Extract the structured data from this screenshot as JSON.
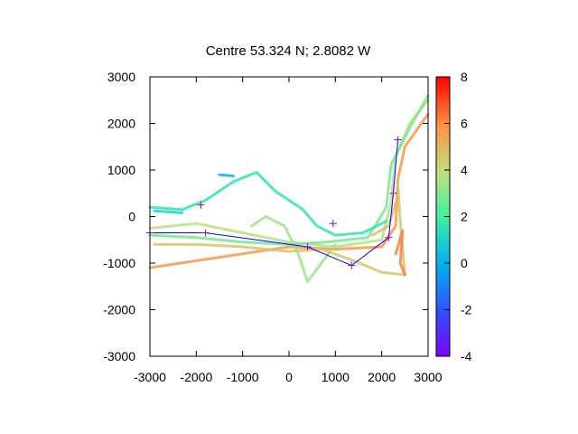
{
  "chart_data": {
    "type": "scatter",
    "title": "Centre 53.324 N; 2.8082  W",
    "xlabel": "",
    "ylabel": "",
    "xlim": [
      -3000,
      3000
    ],
    "ylim": [
      -3000,
      3000
    ],
    "xticks": [
      -3000,
      -2000,
      -1000,
      0,
      1000,
      2000,
      3000
    ],
    "yticks": [
      -3000,
      -2000,
      -1000,
      0,
      1000,
      2000,
      3000
    ],
    "xtick_labels": [
      "-3000",
      "-2000",
      "-1000",
      "0",
      "1000",
      "2000",
      "3000"
    ],
    "ytick_labels": [
      "-3000",
      "-2000",
      "-1000",
      "0",
      "1000",
      "2000",
      "3000"
    ],
    "colorbar": {
      "range": [
        -4,
        8
      ],
      "ticks": [
        -4,
        -2,
        0,
        2,
        4,
        6,
        8
      ],
      "tick_labels": [
        "-4",
        "-2",
        "0",
        "2",
        "4",
        "6",
        "8"
      ],
      "colormap": "rainbow"
    },
    "tracks": [
      {
        "values": [
          [
            -3000,
            -1100
          ],
          [
            -2000,
            -950
          ],
          [
            -1000,
            -800
          ],
          [
            0,
            -650
          ],
          [
            1000,
            -700
          ],
          [
            2000,
            -650
          ],
          [
            2300,
            -200
          ],
          [
            2350,
            800
          ],
          [
            2500,
            1500
          ],
          [
            3000,
            2200
          ]
        ],
        "color_value": 5.8
      },
      {
        "values": [
          [
            -3000,
            -250
          ],
          [
            -2000,
            -150
          ],
          [
            -1000,
            -350
          ],
          [
            0,
            -550
          ],
          [
            1000,
            -650
          ],
          [
            2000,
            -500
          ],
          [
            2200,
            300
          ],
          [
            2300,
            1300
          ],
          [
            2600,
            2000
          ],
          [
            3000,
            2500
          ]
        ],
        "color_value": 3.8
      },
      {
        "values": [
          [
            -3000,
            -400
          ],
          [
            -2000,
            -450
          ],
          [
            -1000,
            -550
          ],
          [
            0,
            -600
          ],
          [
            800,
            -550
          ],
          [
            1700,
            -450
          ],
          [
            2100,
            200
          ],
          [
            2200,
            1100
          ],
          [
            2600,
            1900
          ],
          [
            3000,
            2600
          ]
        ],
        "color_value": 2.8
      },
      {
        "values": [
          [
            -3000,
            200
          ],
          [
            -2300,
            150
          ],
          [
            -1800,
            350
          ],
          [
            -1200,
            750
          ],
          [
            -700,
            950
          ],
          [
            -300,
            550
          ],
          [
            300,
            150
          ],
          [
            600,
            -200
          ],
          [
            1000,
            -400
          ],
          [
            1600,
            -350
          ],
          [
            2100,
            -100
          ]
        ],
        "color_value": 1.6
      },
      {
        "values": [
          [
            -1500,
            900
          ],
          [
            -1200,
            870
          ]
        ],
        "color_value": 0.0
      },
      {
        "values": [
          [
            -2900,
            120
          ],
          [
            -2600,
            100
          ],
          [
            -2300,
            80
          ]
        ],
        "color_value": 1.0
      },
      {
        "values": [
          [
            -800,
            -200
          ],
          [
            -500,
            0
          ],
          [
            -100,
            -200
          ],
          [
            200,
            -800
          ],
          [
            400,
            -1400
          ],
          [
            700,
            -1000
          ],
          [
            1000,
            -600
          ]
        ],
        "color_value": 3.4
      },
      {
        "values": [
          [
            -2900,
            -600
          ],
          [
            -2000,
            -600
          ],
          [
            -1000,
            -650
          ],
          [
            0,
            -750
          ],
          [
            700,
            -700
          ],
          [
            1400,
            -950
          ],
          [
            2000,
            -1200
          ],
          [
            2500,
            -1250
          ],
          [
            2400,
            -100
          ],
          [
            2350,
            700
          ]
        ],
        "color_value": 4.6
      },
      {
        "values": [
          [
            2300,
            -800
          ],
          [
            2450,
            -300
          ],
          [
            2400,
            -1000
          ],
          [
            2500,
            -1250
          ]
        ],
        "color_value": 6.2
      },
      {
        "values": [
          [
            1800,
            -400
          ],
          [
            2150,
            -200
          ],
          [
            2300,
            300
          ]
        ],
        "color_value": 4.8
      }
    ],
    "route": {
      "points": [
        [
          -3000,
          -350
        ],
        [
          -1800,
          -350
        ],
        [
          400,
          -650
        ],
        [
          1350,
          -1050
        ],
        [
          2150,
          -450
        ],
        [
          2250,
          500
        ],
        [
          2350,
          1650
        ]
      ],
      "line_color": "#0000ff",
      "marker_color": "#9400d3"
    },
    "extra_markers": [
      [
        -1900,
        250
      ],
      [
        950,
        -150
      ]
    ]
  }
}
